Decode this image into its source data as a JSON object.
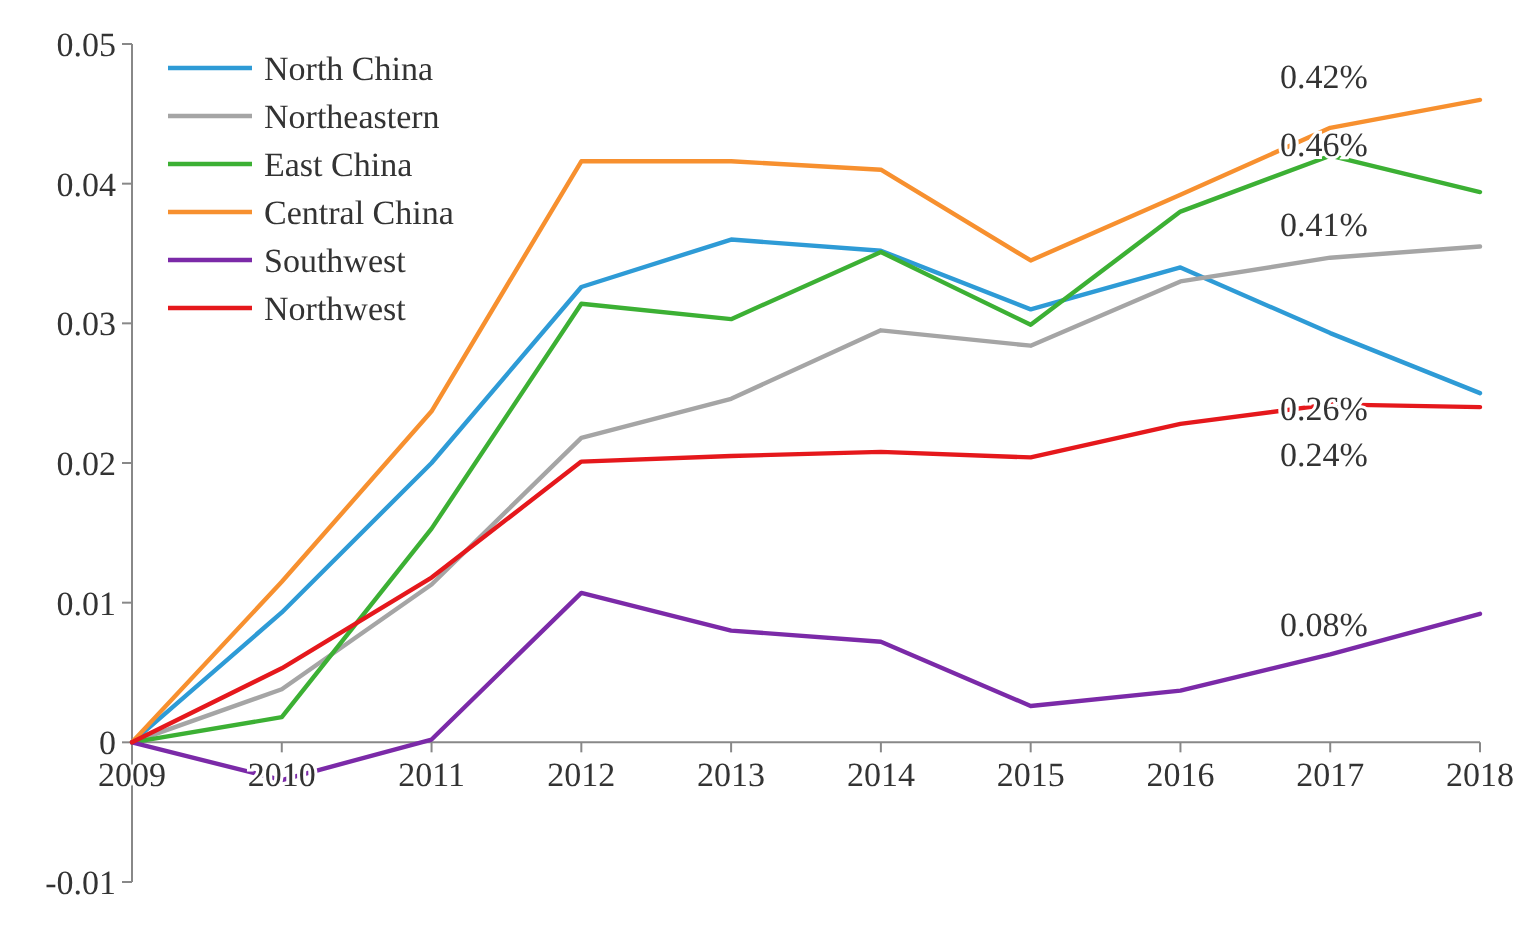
{
  "chart_data": {
    "type": "line",
    "x": [
      2009,
      2010,
      2011,
      2012,
      2013,
      2014,
      2015,
      2016,
      2017,
      2018
    ],
    "xlim": [
      2009,
      2018
    ],
    "xticks": [
      2009,
      2010,
      2011,
      2012,
      2013,
      2014,
      2015,
      2016,
      2017,
      2018
    ],
    "ylim": [
      -0.01,
      0.05
    ],
    "yticks": [
      -0.01,
      0,
      0.01,
      0.02,
      0.03,
      0.04,
      0.05
    ],
    "grid": false,
    "legend": "top left",
    "marker": "none",
    "line_style": "solid",
    "series": [
      {
        "name": "North China",
        "color": "#2e9bd6",
        "values": [
          0,
          0.0093,
          0.02,
          0.0326,
          0.036,
          0.0352,
          0.031,
          0.034,
          0.0293,
          0.025
        ]
      },
      {
        "name": "Northeastern",
        "color": "#a5a5a5",
        "values": [
          0,
          0.0038,
          0.0113,
          0.0218,
          0.0246,
          0.0295,
          0.0284,
          0.033,
          0.0347,
          0.0355
        ]
      },
      {
        "name": "East China",
        "color": "#3cb034",
        "values": [
          0,
          0.0018,
          0.0153,
          0.0314,
          0.0303,
          0.0351,
          0.0299,
          0.038,
          0.042,
          0.0394
        ]
      },
      {
        "name": "Central China",
        "color": "#f7902f",
        "values": [
          0,
          0.0115,
          0.0237,
          0.0416,
          0.0416,
          0.041,
          0.0345,
          0.0392,
          0.044,
          0.046
        ]
      },
      {
        "name": "Southwest",
        "color": "#7b2aa8",
        "values": [
          0,
          -0.0027,
          0.0002,
          0.0107,
          0.008,
          0.0072,
          0.0026,
          0.0037,
          0.0063,
          0.0092
        ]
      },
      {
        "name": "Northwest",
        "color": "#e5181c",
        "values": [
          0,
          0.0053,
          0.0118,
          0.0201,
          0.0205,
          0.0208,
          0.0204,
          0.0228,
          0.0242,
          0.024
        ]
      }
    ],
    "annotations": [
      "0.42%",
      "0.46%",
      "0.41%",
      "0.26%",
      "0.24%",
      "0.08%"
    ]
  }
}
